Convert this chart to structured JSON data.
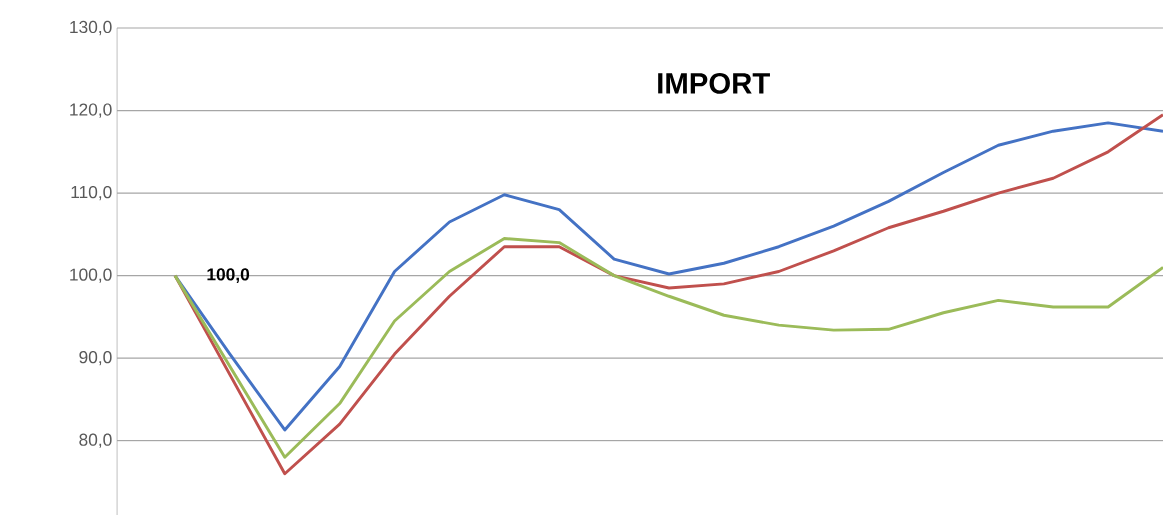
{
  "chart_data": {
    "type": "line",
    "title": "IMPORT",
    "categories": [
      null,
      null,
      null,
      null,
      null,
      null,
      null,
      null,
      null,
      null,
      null,
      null,
      null,
      null,
      null,
      null,
      null,
      null,
      null
    ],
    "series": [
      {
        "color": "#4472c4",
        "values": [
          100,
          90.5,
          81.3,
          89,
          100.5,
          106.5,
          109.8,
          108,
          102,
          100.2,
          101.5,
          103.5,
          106,
          109,
          112.5,
          115.8,
          117.5,
          118.5,
          117.5
        ]
      },
      {
        "color": "#c0504d",
        "values": [
          100,
          88,
          76,
          82,
          90.5,
          97.5,
          103.5,
          103.5,
          100,
          98.5,
          99,
          100.5,
          103,
          105.8,
          107.8,
          110,
          111.8,
          115,
          119.5
        ]
      },
      {
        "color": "#9bbb59",
        "values": [
          100,
          89,
          78,
          84.5,
          94.5,
          100.5,
          104.5,
          104,
          100,
          97.5,
          95.2,
          94,
          93.4,
          93.5,
          95.5,
          97,
          96.2,
          96.2,
          101
        ]
      }
    ],
    "ylim": [
      71,
      130
    ],
    "yticks": [
      {
        "value": 80,
        "label": "80,0"
      },
      {
        "value": 90,
        "label": "90,0"
      },
      {
        "value": 100,
        "label": "100,0"
      },
      {
        "value": 110,
        "label": "110,0"
      },
      {
        "value": 120,
        "label": "120,0"
      },
      {
        "value": 130,
        "label": "130,0"
      }
    ],
    "grid": "y",
    "tick_labels": "y",
    "marker": "none",
    "line_style": "solid",
    "annotations": [
      "100,0"
    ]
  }
}
